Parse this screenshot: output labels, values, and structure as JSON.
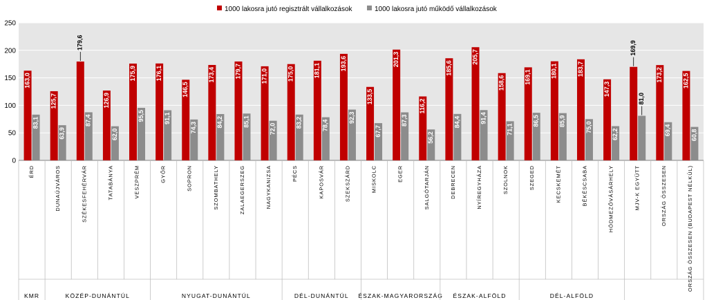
{
  "chart_data": {
    "type": "bar",
    "ylim": [
      0,
      250
    ],
    "yticks": [
      0,
      50,
      100,
      150,
      200,
      250
    ],
    "grid": true,
    "legend_position": "top-center",
    "colors": {
      "registered": "#c00000",
      "operating": "#8c8c8c",
      "plot_bg": "#e6e6e6"
    },
    "series": [
      {
        "name": "1000 lakosra jutó regisztrált vállalkozások",
        "values": [
          163.0,
          125.7,
          179.6,
          126.9,
          175.9,
          176.1,
          146.5,
          173.4,
          179.7,
          171.0,
          175.0,
          181.1,
          193.6,
          133.5,
          201.3,
          116.2,
          185.6,
          205.7,
          158.6,
          169.1,
          180.1,
          183.7,
          147.3,
          169.9,
          173.2,
          162.5
        ],
        "labels": [
          "163,0",
          "125,7",
          "179,6",
          "126,9",
          "175,9",
          "176,1",
          "146,5",
          "173,4",
          "179,7",
          "171,0",
          "175,0",
          "181,1",
          "193,6",
          "133,5",
          "201,3",
          "116,2",
          "185,6",
          "205,7",
          "158,6",
          "169,1",
          "180,1",
          "183,7",
          "147,3",
          "169,9",
          "173,2",
          "162,5"
        ]
      },
      {
        "name": "1000 lakosra jutó működő vállalkozások",
        "values": [
          83.1,
          63.9,
          87.4,
          62.0,
          95.5,
          91.1,
          74.3,
          84.2,
          85.1,
          72.0,
          83.2,
          78.4,
          92.3,
          67.7,
          87.3,
          56.2,
          84.4,
          91.4,
          71.1,
          86.5,
          85.9,
          75.0,
          62.2,
          81.0,
          69.4,
          60.8
        ],
        "labels": [
          "83,1",
          "63,9",
          "87,4",
          "62,0",
          "95,5",
          "91,1",
          "74,3",
          "84,2",
          "85,1",
          "72,0",
          "83,2",
          "78,4",
          "92,3",
          "67,7",
          "87,3",
          "56,2",
          "84,4",
          "91,4",
          "71,1",
          "86,5",
          "85,9",
          "75,0",
          "62,2",
          "81,0",
          "69,4",
          "60,8"
        ]
      }
    ],
    "categories": [
      "ÉRD",
      "DUNAÚJVÁROS",
      "SZÉKESFEHÉRVÁR",
      "TATABÁNYA",
      "VESZPRÉM",
      "GYŐR",
      "SOPRON",
      "SZOMBATHELY",
      "ZALAEGERSZEG",
      "NAGYKANIZSA",
      "PÉCS",
      "KAPOSVÁR",
      "SZEKSZÁRD",
      "MISKOLC",
      "EGER",
      "SALGÓTARJÁN",
      "DEBRECEN",
      "NYÍREGYHÁZA",
      "SZOLNOK",
      "SZEGED",
      "KECSKEMÉT",
      "BÉKÉSCSABA",
      "HÓDMEZŐVÁSÁRHELY",
      "MJV-K EGYÜTT",
      "ORSZÁG ÖSSZESEN",
      "ORSZÁG ÖSSZESEN (BUDAPEST NÉLKÜL)"
    ],
    "regions": [
      {
        "name": "KMR",
        "span": 1
      },
      {
        "name": "KÖZÉP-DUNÁNTÚL",
        "span": 4
      },
      {
        "name": "NYUGAT-DUNÁNTÚL",
        "span": 5
      },
      {
        "name": "DÉL-DUNÁNTÚL",
        "span": 3
      },
      {
        "name": "ÉSZAK-MAGYARORSZÁG",
        "span": 3
      },
      {
        "name": "ÉSZAK-ALFÖLD",
        "span": 3
      },
      {
        "name": "DÉL-ALFÖLD",
        "span": 4
      },
      {
        "name": "",
        "span": 3
      }
    ]
  }
}
